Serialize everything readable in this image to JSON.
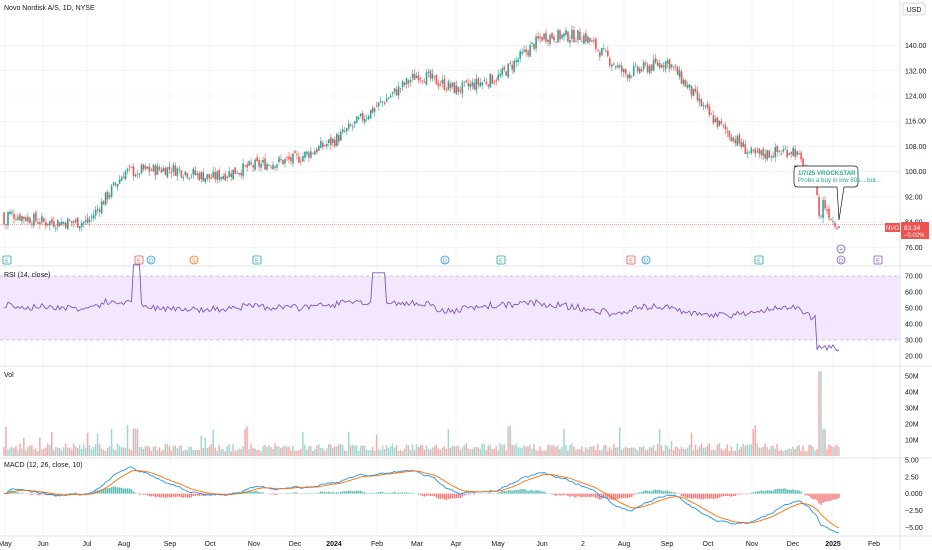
{
  "header": {
    "title": "Novo Nordisk A/S, 1D, NYSE",
    "currency": "USD"
  },
  "chart_data": [
    {
      "type": "candlestick",
      "pane": "price",
      "ticker": "NVO",
      "last_price": "83.34",
      "last_change": "−0.02%",
      "y_ticks": [
        "76.00",
        "84.00",
        "92.00",
        "100.00",
        "108.00",
        "116.00",
        "124.00",
        "132.00",
        "140.00"
      ],
      "ylim": [
        72,
        150
      ],
      "x_labels": [
        "May",
        "Jun",
        "Jul",
        "Aug",
        "Sep",
        "Oct",
        "Nov",
        "Dec",
        "2024",
        "Feb",
        "Mar",
        "Apr",
        "May",
        "Jun",
        "2",
        "Aug",
        "Sep",
        "Oct",
        "Nov",
        "Dec",
        "2025",
        "Feb"
      ],
      "bold_x_labels": [
        "2024",
        "2025"
      ],
      "series_close_by_month": [
        {
          "m": "May",
          "close": 87
        },
        {
          "m": "Jun",
          "close": 84
        },
        {
          "m": "Jul",
          "close": 84
        },
        {
          "m": "Aug",
          "close": 100
        },
        {
          "m": "Sep",
          "close": 101
        },
        {
          "m": "Oct",
          "close": 98
        },
        {
          "m": "Nov",
          "close": 102
        },
        {
          "m": "Dec",
          "close": 104
        },
        {
          "m": "2024",
          "close": 110
        },
        {
          "m": "Feb",
          "close": 121
        },
        {
          "m": "Mar",
          "close": 131
        },
        {
          "m": "Apr",
          "close": 126
        },
        {
          "m": "May",
          "close": 130
        },
        {
          "m": "Jun",
          "close": 143
        },
        {
          "m": "2",
          "close": 143
        },
        {
          "m": "Aug",
          "close": 131
        },
        {
          "m": "Sep",
          "close": 135
        },
        {
          "m": "Oct",
          "close": 118
        },
        {
          "m": "Nov",
          "close": 105
        },
        {
          "m": "Dec",
          "close": 107
        },
        {
          "m": "2025",
          "close": 84
        }
      ],
      "annotation": {
        "line1": "1/7/25 VROCKSTAR",
        "line2": "Probs a buy in low 80s... but..."
      },
      "event_markers": [
        "E",
        "E",
        "D",
        "S",
        "E",
        "D",
        "E",
        "E",
        "D",
        "E",
        "D",
        "E"
      ]
    },
    {
      "type": "line",
      "pane": "rsi",
      "title": "RSI (14, close)",
      "y_ticks": [
        "20.00",
        "30.00",
        "40.00",
        "50.00",
        "60.00",
        "70.00"
      ],
      "ylim": [
        15,
        75
      ],
      "band": [
        30,
        70
      ]
    },
    {
      "type": "bar",
      "pane": "volume",
      "title": "Vol",
      "y_ticks": [
        "10M",
        "20M",
        "30M",
        "40M",
        "50M"
      ],
      "ylim": [
        0,
        55
      ],
      "peak_value_m": 53
    },
    {
      "type": "histogram+line",
      "pane": "macd",
      "title": "MACD (12, 26, close, 10)",
      "y_ticks": [
        "5.00",
        "2.50",
        "0.000",
        "−2.50",
        "−5.00"
      ],
      "ylim": [
        -6,
        5
      ]
    }
  ],
  "colors": {
    "up": "#26a69a",
    "down": "#ef5350",
    "rsi_line": "#7e57c2",
    "rsi_band": "#f3e7fd",
    "macd_line": "#2196f3",
    "signal_line": "#ff6d00",
    "price_label_bg": "#ef5350",
    "grid": "#e0e3eb",
    "text": "#131722"
  }
}
